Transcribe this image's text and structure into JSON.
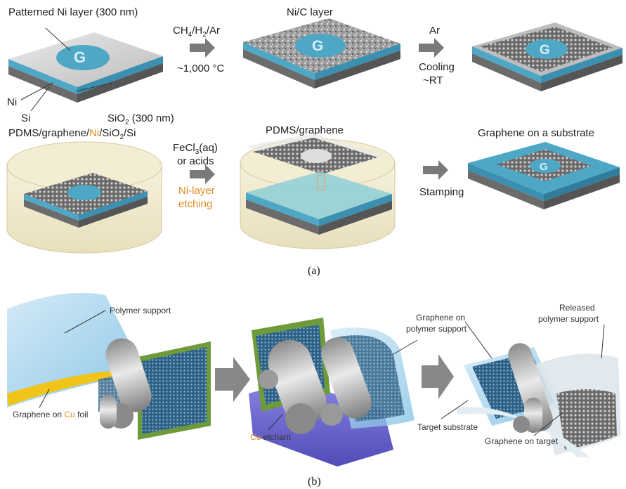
{
  "panel_a": {
    "step1": {
      "title": "Patterned Ni layer (300 nm)",
      "label_ni": "Ni",
      "label_si": "Si",
      "label_sio2_prefix": "SiO",
      "label_sio2_sub": "2",
      "label_sio2_suffix": " (300 nm)"
    },
    "arrow1": {
      "gas_parts": [
        "CH",
        "4",
        "/H",
        "2",
        "/Ar"
      ],
      "temp": "~1,000 °C"
    },
    "step2": {
      "title": "Ni/C layer"
    },
    "arrow2": {
      "line1": "Ar",
      "line2": "Cooling",
      "line3": "~RT"
    },
    "step4": {
      "title_parts": [
        "PDMS/graphene/",
        "Ni",
        "/SiO",
        "2",
        "/Si"
      ]
    },
    "arrow3": {
      "line1_prefix": "FeCl",
      "line1_sub": "3",
      "line1_suffix": "(aq)",
      "line2": "or acids",
      "line3": "Ni-layer",
      "line4": "etching"
    },
    "step5": {
      "title": "PDMS/graphene"
    },
    "arrow4": {
      "label": "Stamping"
    },
    "step6": {
      "title": "Graphene on a substrate"
    },
    "caption": "(a)"
  },
  "panel_b": {
    "polymer_support": "Polymer support",
    "graphene_on_cu_prefix": "Graphene on ",
    "graphene_on_cu_highlight": "Cu",
    "graphene_on_cu_suffix": " foil",
    "cu_etchant_highlight": "Cu",
    "cu_etchant_suffix": " etchant",
    "graphene_on_polymer_line1": "Graphene on",
    "graphene_on_polymer_line2": "polymer support",
    "released_line1": "Released",
    "released_line2": "polymer support",
    "target_substrate": "Target substrate",
    "graphene_on_target": "Graphene on target",
    "caption": "(b)"
  },
  "colors": {
    "substrate_blue": "#4fa7c6",
    "orange_highlight": "#e08a1e",
    "arrow_gray": "#7a7a7a",
    "etchant_purple": "#5a55c8",
    "film_blue": "#8ecbe8"
  }
}
